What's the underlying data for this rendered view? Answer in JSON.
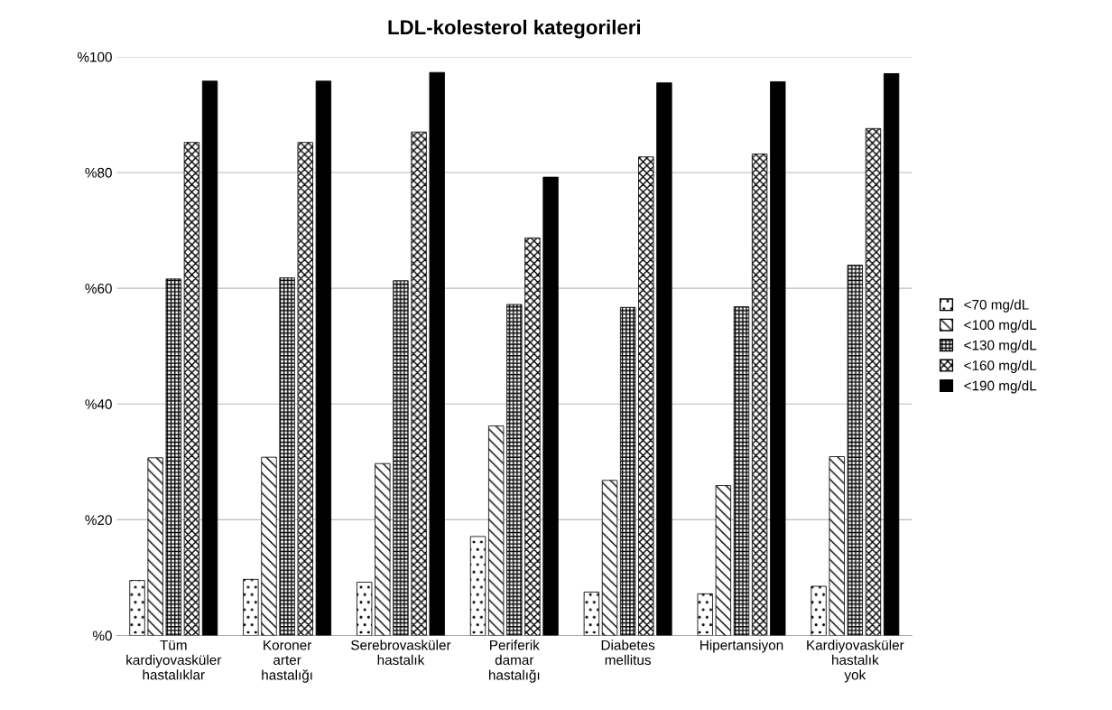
{
  "chart_data": {
    "type": "bar",
    "title": "LDL-kolesterol kategorileri",
    "categories": [
      "Tüm\nkardiyovasküler\nhastalıklar",
      "Koroner\narter\nhastalığı",
      "Serebrovasküler\nhastalık",
      "Periferik\ndamar\nhastalığı",
      "Diabetes\nmellitus",
      "Hipertansiyon",
      "Kardiyovasküler\nhastalık\nyok"
    ],
    "series": [
      {
        "name": "<70 mg/dL",
        "color": "#000000",
        "values": [
          9.5,
          9.7,
          9.2,
          17.1,
          7.5,
          7.2,
          8.5
        ]
      },
      {
        "name": "<100 mg/dL",
        "color": "#000000",
        "values": [
          30.7,
          30.8,
          29.7,
          36.2,
          26.8,
          25.9,
          30.9
        ]
      },
      {
        "name": "<130 mg/dL",
        "color": "#000000",
        "values": [
          61.6,
          61.8,
          61.3,
          57.2,
          56.7,
          56.8,
          64.0
        ]
      },
      {
        "name": "<160 mg/dL",
        "color": "#000000",
        "values": [
          85.2,
          85.2,
          87.0,
          68.7,
          82.7,
          83.2,
          87.6
        ]
      },
      {
        "name": "<190 mg/dL",
        "color": "#000000",
        "values": [
          95.8,
          95.8,
          97.3,
          79.2,
          95.5,
          95.7,
          97.1
        ]
      }
    ],
    "ylim": [
      0,
      100
    ],
    "yticks": [
      {
        "value": 0,
        "label": "%0"
      },
      {
        "value": 20,
        "label": "%20"
      },
      {
        "value": 40,
        "label": "%40"
      },
      {
        "value": 60,
        "label": "%60"
      },
      {
        "value": 80,
        "label": "%80"
      },
      {
        "value": 100,
        "label": "%100"
      }
    ],
    "grid": "y",
    "legend": "right"
  }
}
